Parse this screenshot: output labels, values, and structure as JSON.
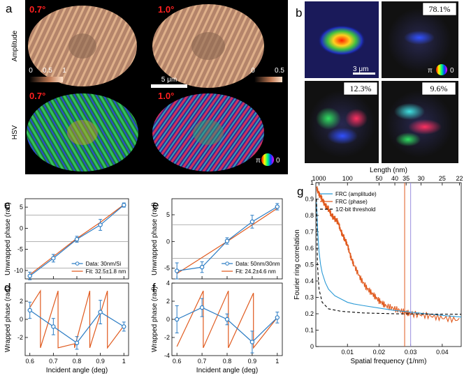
{
  "panel_a": {
    "label": "a",
    "angle_left": "0.7°",
    "angle_right": "1.0°",
    "row_amplitude": "Amplitude",
    "row_hsv": "HSV",
    "scale_bar": "5 μm",
    "cbar_left_ticks": [
      "0",
      "0.5",
      "1"
    ],
    "cbar_right_ticks": [
      "0",
      "0.5"
    ],
    "phase_pi": "π",
    "phase_zero": "0"
  },
  "panel_b": {
    "label": "b",
    "pct_1": "78.1%",
    "pct_2": "12.3%",
    "pct_3": "9.6%",
    "scale_bar": "3 μm",
    "phase_pi": "π",
    "phase_zero": "0"
  },
  "chart_data": [
    {
      "id": "c",
      "type": "line",
      "label": "c",
      "ylabel": "Unwrapped phase (rad)",
      "ylim": [
        -12,
        7
      ],
      "yticks": [
        "-10",
        "-5",
        "0",
        "5"
      ],
      "x": [
        0.6,
        0.7,
        0.8,
        0.9,
        1.0
      ],
      "series": [
        {
          "name": "Data: 30nm/Si",
          "values": [
            -11.3,
            -7.1,
            -2.6,
            0.8,
            5.5
          ],
          "err": [
            0.9,
            0.9,
            0.7,
            1.3,
            0.5
          ],
          "color": "#2b7cc4"
        },
        {
          "name": "Fit: 32.5±1.8 nm",
          "values": [
            -11.0,
            -6.7,
            -2.4,
            1.4,
            5.6
          ],
          "color": "#e05a1e"
        }
      ],
      "hlines": [
        3.14,
        -3.14,
        -9.42
      ]
    },
    {
      "id": "d",
      "type": "line",
      "label": "d",
      "xlabel": "Incident angle (deg)",
      "ylabel": "Wrapped phase (rad)",
      "ylim": [
        -4,
        4
      ],
      "yticks": [
        "-2",
        "0",
        "2"
      ],
      "xticks": [
        "0.6",
        "0.7",
        "0.8",
        "0.9",
        "1"
      ],
      "x": [
        0.6,
        0.7,
        0.8,
        0.9,
        1.0
      ],
      "series": [
        {
          "name": "Data",
          "values": [
            1.0,
            -0.8,
            -2.6,
            0.8,
            -0.8
          ],
          "err": [
            0.9,
            0.9,
            0.7,
            1.3,
            0.5
          ],
          "color": "#2b7cc4"
        }
      ],
      "sawtooth": {
        "x": [
          0.6,
          0.645,
          0.645,
          0.72,
          0.72,
          0.79,
          0.79,
          0.855,
          0.855,
          0.93,
          0.93,
          1.0
        ],
        "y": [
          1.3,
          3.14,
          -3.14,
          3.14,
          -3.14,
          -2.7,
          -3.14,
          3.14,
          -3.14,
          3.14,
          -3.14,
          -0.7
        ],
        "color": "#e05a1e"
      }
    },
    {
      "id": "e",
      "type": "line",
      "label": "e",
      "ylabel": "Unwrapped phase (rad)",
      "ylim": [
        -7,
        8
      ],
      "yticks": [
        "-5",
        "0",
        "5"
      ],
      "x": [
        0.6,
        0.7,
        0.8,
        0.9,
        1.0
      ],
      "series": [
        {
          "name": "Data: 50nm/30nm",
          "values": [
            -5.5,
            -4.8,
            0.1,
            3.7,
            6.5
          ],
          "err": [
            1.5,
            1.0,
            0.6,
            1.2,
            0.6
          ],
          "color": "#2b7cc4"
        },
        {
          "name": "Fit: 24.2±4.6 nm",
          "values": [
            -6.0,
            -3.0,
            0.0,
            3.1,
            6.2
          ],
          "color": "#e05a1e"
        }
      ],
      "hlines": [
        3.14,
        -3.14
      ]
    },
    {
      "id": "f",
      "type": "line",
      "label": "f",
      "xlabel": "Incident angle (deg)",
      "ylabel": "Wrapped phase (rad)",
      "ylim": [
        -4,
        4
      ],
      "yticks": [
        "-4",
        "-2",
        "0",
        "2",
        "4"
      ],
      "xticks": [
        "0.6",
        "0.7",
        "0.8",
        "0.9",
        "1"
      ],
      "x": [
        0.6,
        0.7,
        0.8,
        0.9,
        1.0
      ],
      "series": [
        {
          "name": "Data",
          "values": [
            0.0,
            1.3,
            0.0,
            -2.5,
            0.2
          ],
          "err": [
            1.5,
            1.0,
            0.6,
            1.2,
            0.6
          ],
          "color": "#2b7cc4"
        }
      ],
      "sawtooth": {
        "x": [
          0.6,
          0.705,
          0.705,
          0.805,
          0.805,
          0.905,
          0.905,
          1.0
        ],
        "y": [
          -3.0,
          3.14,
          -3.14,
          3.14,
          -3.14,
          2.9,
          -3.14,
          0.2
        ],
        "color": "#e05a1e"
      }
    },
    {
      "id": "g",
      "type": "line",
      "label": "g",
      "xlabel": "Spatial frequency (1/nm)",
      "ylabel": "Fourier ring correlation",
      "top_label": "Length (nm)",
      "xlim": [
        0,
        0.046
      ],
      "ylim": [
        0,
        1
      ],
      "xticks": [
        "0.01",
        "0.02",
        "0.03",
        "0.04"
      ],
      "xtick_values": [
        0.01,
        0.02,
        0.03,
        0.04
      ],
      "yticks": [
        "0",
        "0.1",
        "0.2",
        "0.3",
        "0.4",
        "0.5",
        "0.6",
        "0.7",
        "0.8",
        "0.9",
        "1"
      ],
      "top_ticks": [
        "1000",
        "100",
        "50",
        "40",
        "35",
        "30",
        "25",
        "22"
      ],
      "top_tick_values": [
        0.001,
        0.01,
        0.02,
        0.025,
        0.02857,
        0.0333,
        0.04,
        0.04545
      ],
      "vlines": [
        {
          "x": 0.0281,
          "color": "#e05a1e"
        },
        {
          "x": 0.03,
          "color": "#9a8fe0"
        }
      ],
      "legend": [
        "FRC (amplitude)",
        "FRC (phase)",
        "1/2-bit threshold"
      ],
      "series": [
        {
          "name": "FRC (amplitude)",
          "color": "#2b9ad6",
          "x": [
            0.0002,
            0.0006,
            0.001,
            0.0015,
            0.002,
            0.003,
            0.004,
            0.005,
            0.006,
            0.008,
            0.01,
            0.012,
            0.015,
            0.02,
            0.025,
            0.03,
            0.035,
            0.04,
            0.046
          ],
          "values": [
            0.88,
            0.7,
            0.58,
            0.5,
            0.45,
            0.39,
            0.35,
            0.33,
            0.31,
            0.29,
            0.27,
            0.26,
            0.25,
            0.235,
            0.22,
            0.21,
            0.2,
            0.19,
            0.18
          ]
        },
        {
          "name": "FRC (phase)",
          "color": "#e05a1e",
          "x": [
            0.0002,
            0.001,
            0.002,
            0.003,
            0.004,
            0.005,
            0.006,
            0.007,
            0.008,
            0.009,
            0.01,
            0.011,
            0.012,
            0.014,
            0.016,
            0.018,
            0.02,
            0.022,
            0.025,
            0.028,
            0.03,
            0.035,
            0.04,
            0.046
          ],
          "values": [
            0.97,
            0.93,
            0.9,
            0.86,
            0.84,
            0.8,
            0.78,
            0.76,
            0.7,
            0.66,
            0.62,
            0.55,
            0.5,
            0.42,
            0.36,
            0.32,
            0.28,
            0.25,
            0.23,
            0.21,
            0.2,
            0.19,
            0.175,
            0.16
          ]
        },
        {
          "name": "1/2-bit threshold",
          "color": "#000000",
          "dash": true,
          "x": [
            0.0002,
            0.0005,
            0.001,
            0.002,
            0.004,
            0.008,
            0.015,
            0.025,
            0.035,
            0.046
          ],
          "values": [
            0.9,
            0.5,
            0.35,
            0.27,
            0.23,
            0.215,
            0.205,
            0.2,
            0.198,
            0.197
          ]
        }
      ]
    }
  ]
}
